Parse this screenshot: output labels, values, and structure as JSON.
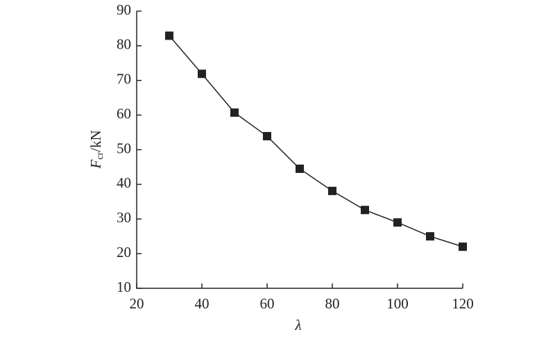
{
  "chart_data": {
    "type": "line",
    "x": [
      30,
      40,
      50,
      60,
      70,
      80,
      90,
      100,
      110,
      120
    ],
    "series": [
      {
        "color": "#222222",
        "values": [
          82.9,
          71.9,
          60.7,
          53.9,
          44.5,
          38.1,
          32.6,
          29.0,
          25.0,
          22.0
        ]
      }
    ],
    "xlim": [
      20,
      120
    ],
    "xticks": [
      20,
      40,
      60,
      80,
      100,
      120
    ],
    "ylim": [
      10,
      90
    ],
    "yticks": [
      10,
      20,
      30,
      40,
      50,
      60,
      70,
      80,
      90
    ],
    "xlabel": "λ",
    "ylabel": [
      "F",
      "cr",
      "/kN"
    ]
  }
}
